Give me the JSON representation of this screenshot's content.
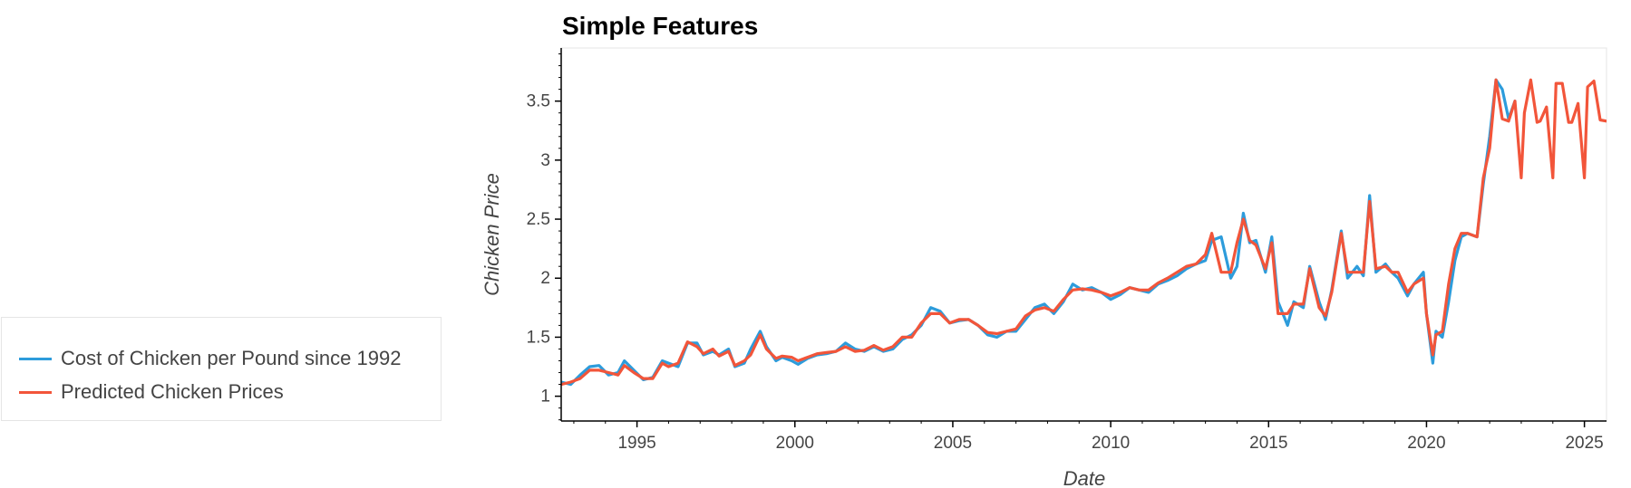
{
  "chart_data": {
    "type": "line",
    "title": "Simple Features",
    "xlabel": "Date",
    "ylabel": "Chicken Price",
    "xlim": [
      1992.6,
      2025.7
    ],
    "ylim": [
      0.79,
      3.95
    ],
    "xticks": [
      1995,
      2000,
      2005,
      2010,
      2015,
      2020,
      2025
    ],
    "xtick_labels": [
      "1995",
      "2000",
      "2005",
      "2010",
      "2015",
      "2020",
      "2025"
    ],
    "yticks": [
      1,
      1.5,
      2,
      2.5,
      3,
      3.5
    ],
    "ytick_labels": [
      "1",
      "1.5",
      "2",
      "2.5",
      "3",
      "3.5"
    ],
    "legend_position": "left",
    "series": [
      {
        "name": "Cost of Chicken per Pound since 1992",
        "color": "#2d9cdb",
        "x": [
          1992.6,
          1992.9,
          1993.2,
          1993.5,
          1993.8,
          1994.1,
          1994.4,
          1994.6,
          1994.9,
          1995.2,
          1995.5,
          1995.8,
          1996.0,
          1996.3,
          1996.6,
          1996.9,
          1997.1,
          1997.4,
          1997.6,
          1997.9,
          1998.1,
          1998.4,
          1998.6,
          1998.9,
          1999.1,
          1999.4,
          1999.6,
          1999.9,
          2000.1,
          2000.4,
          2000.7,
          2001.0,
          2001.3,
          2001.6,
          2001.9,
          2002.2,
          2002.5,
          2002.8,
          2003.1,
          2003.4,
          2003.7,
          2004.0,
          2004.3,
          2004.6,
          2004.9,
          2005.2,
          2005.5,
          2005.8,
          2006.1,
          2006.4,
          2006.7,
          2007.0,
          2007.3,
          2007.6,
          2007.9,
          2008.2,
          2008.5,
          2008.8,
          2009.1,
          2009.4,
          2009.7,
          2010.0,
          2010.3,
          2010.6,
          2010.9,
          2011.2,
          2011.5,
          2011.8,
          2012.1,
          2012.4,
          2012.7,
          2013.0,
          2013.2,
          2013.5,
          2013.8,
          2014.0,
          2014.2,
          2014.4,
          2014.6,
          2014.9,
          2015.1,
          2015.3,
          2015.6,
          2015.8,
          2016.1,
          2016.3,
          2016.6,
          2016.8,
          2017.0,
          2017.3,
          2017.5,
          2017.8,
          2018.0,
          2018.2,
          2018.4,
          2018.7,
          2018.9,
          2019.1,
          2019.4,
          2019.6,
          2019.9,
          2020.0,
          2020.2,
          2020.3,
          2020.5,
          2020.7,
          2020.9,
          2021.1,
          2021.3,
          2021.6,
          2021.8,
          2022.0,
          2022.2,
          2022.4,
          2022.6,
          2022.8
        ],
        "values": [
          1.12,
          1.1,
          1.18,
          1.25,
          1.26,
          1.18,
          1.2,
          1.3,
          1.22,
          1.14,
          1.16,
          1.3,
          1.28,
          1.25,
          1.45,
          1.45,
          1.35,
          1.38,
          1.35,
          1.4,
          1.25,
          1.28,
          1.4,
          1.55,
          1.42,
          1.3,
          1.33,
          1.3,
          1.27,
          1.32,
          1.35,
          1.36,
          1.38,
          1.45,
          1.4,
          1.38,
          1.42,
          1.38,
          1.4,
          1.48,
          1.52,
          1.6,
          1.75,
          1.72,
          1.62,
          1.64,
          1.65,
          1.6,
          1.52,
          1.5,
          1.55,
          1.55,
          1.65,
          1.75,
          1.78,
          1.7,
          1.8,
          1.95,
          1.9,
          1.92,
          1.88,
          1.82,
          1.86,
          1.92,
          1.9,
          1.88,
          1.95,
          1.98,
          2.02,
          2.08,
          2.12,
          2.15,
          2.32,
          2.35,
          2.0,
          2.1,
          2.55,
          2.3,
          2.32,
          2.05,
          2.35,
          1.8,
          1.6,
          1.8,
          1.75,
          2.1,
          1.8,
          1.65,
          1.9,
          2.4,
          2.0,
          2.1,
          2.02,
          2.7,
          2.05,
          2.12,
          2.05,
          2.0,
          1.85,
          1.95,
          2.05,
          1.7,
          1.28,
          1.55,
          1.5,
          1.8,
          2.15,
          2.35,
          2.38,
          2.35,
          2.8,
          3.2,
          3.68,
          3.6,
          3.35,
          3.5
        ]
      },
      {
        "name": "Predicted Chicken Prices",
        "color": "#f2553a",
        "x": [
          1992.6,
          1992.9,
          1993.2,
          1993.5,
          1993.8,
          1994.1,
          1994.4,
          1994.6,
          1994.9,
          1995.2,
          1995.5,
          1995.8,
          1996.0,
          1996.3,
          1996.6,
          1996.9,
          1997.1,
          1997.4,
          1997.6,
          1997.9,
          1998.1,
          1998.4,
          1998.6,
          1998.9,
          1999.1,
          1999.4,
          1999.6,
          1999.9,
          2000.1,
          2000.4,
          2000.7,
          2001.0,
          2001.3,
          2001.6,
          2001.9,
          2002.2,
          2002.5,
          2002.8,
          2003.1,
          2003.4,
          2003.7,
          2004.0,
          2004.3,
          2004.6,
          2004.9,
          2005.2,
          2005.5,
          2005.8,
          2006.1,
          2006.4,
          2006.7,
          2007.0,
          2007.3,
          2007.6,
          2007.9,
          2008.2,
          2008.5,
          2008.8,
          2009.1,
          2009.4,
          2009.7,
          2010.0,
          2010.3,
          2010.6,
          2010.9,
          2011.2,
          2011.5,
          2011.8,
          2012.1,
          2012.4,
          2012.7,
          2013.0,
          2013.2,
          2013.5,
          2013.8,
          2014.0,
          2014.2,
          2014.4,
          2014.6,
          2014.9,
          2015.1,
          2015.3,
          2015.6,
          2015.8,
          2016.1,
          2016.3,
          2016.6,
          2016.8,
          2017.0,
          2017.3,
          2017.5,
          2017.8,
          2018.0,
          2018.2,
          2018.4,
          2018.7,
          2018.9,
          2019.1,
          2019.4,
          2019.6,
          2019.9,
          2020.0,
          2020.2,
          2020.3,
          2020.5,
          2020.7,
          2020.9,
          2021.1,
          2021.3,
          2021.6,
          2021.8,
          2022.0,
          2022.2,
          2022.4,
          2022.6,
          2022.8,
          2023.0,
          2023.1,
          2023.3,
          2023.5,
          2023.6,
          2023.8,
          2024.0,
          2024.1,
          2024.3,
          2024.5,
          2024.6,
          2024.8,
          2025.0,
          2025.1,
          2025.3,
          2025.5,
          2025.7
        ],
        "values": [
          1.1,
          1.12,
          1.15,
          1.22,
          1.22,
          1.2,
          1.18,
          1.26,
          1.2,
          1.15,
          1.15,
          1.28,
          1.25,
          1.28,
          1.46,
          1.42,
          1.36,
          1.4,
          1.34,
          1.38,
          1.26,
          1.3,
          1.35,
          1.52,
          1.4,
          1.32,
          1.34,
          1.33,
          1.3,
          1.33,
          1.36,
          1.37,
          1.38,
          1.42,
          1.38,
          1.39,
          1.43,
          1.39,
          1.42,
          1.5,
          1.5,
          1.62,
          1.7,
          1.7,
          1.62,
          1.65,
          1.65,
          1.6,
          1.54,
          1.53,
          1.55,
          1.57,
          1.68,
          1.73,
          1.75,
          1.72,
          1.82,
          1.9,
          1.91,
          1.9,
          1.88,
          1.85,
          1.88,
          1.92,
          1.9,
          1.9,
          1.96,
          2.0,
          2.05,
          2.1,
          2.12,
          2.2,
          2.38,
          2.05,
          2.05,
          2.3,
          2.5,
          2.32,
          2.28,
          2.08,
          2.3,
          1.7,
          1.7,
          1.78,
          1.78,
          2.08,
          1.75,
          1.68,
          1.88,
          2.38,
          2.05,
          2.05,
          2.05,
          2.65,
          2.08,
          2.1,
          2.05,
          2.05,
          1.88,
          1.95,
          2.0,
          1.7,
          1.35,
          1.52,
          1.55,
          1.95,
          2.25,
          2.38,
          2.38,
          2.35,
          2.85,
          3.1,
          3.68,
          3.35,
          3.33,
          3.5,
          2.85,
          3.4,
          3.68,
          3.32,
          3.33,
          3.45,
          2.85,
          3.65,
          3.65,
          3.32,
          3.32,
          3.48,
          2.85,
          3.62,
          3.67,
          3.34,
          3.33
        ]
      }
    ]
  }
}
